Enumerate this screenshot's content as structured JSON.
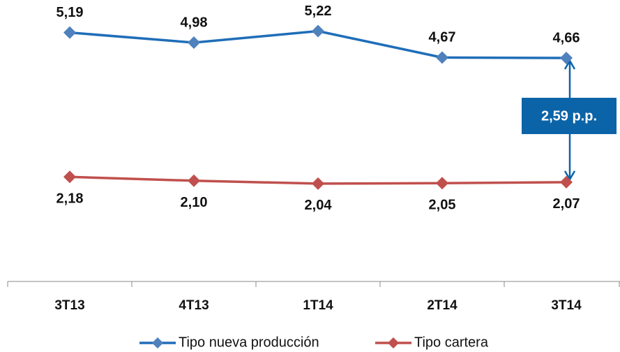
{
  "chart_data": {
    "type": "line",
    "categories": [
      "3T13",
      "4T13",
      "1T14",
      "2T14",
      "3T14"
    ],
    "series": [
      {
        "name": "Tipo nueva producción",
        "color": "#1f6eb8",
        "marker_color": "#4f81bd",
        "values": [
          5.19,
          4.98,
          5.22,
          4.67,
          4.66
        ],
        "value_labels": [
          "5,19",
          "4,98",
          "5,22",
          "4,67",
          "4,66"
        ]
      },
      {
        "name": "Tipo cartera",
        "color": "#c0504d",
        "marker_color": "#c0504d",
        "values": [
          2.18,
          2.1,
          2.04,
          2.05,
          2.07
        ],
        "value_labels": [
          "2,18",
          "2,10",
          "2,04",
          "2,05",
          "2,07"
        ]
      }
    ],
    "ylim": [
      0,
      6
    ],
    "annotation": "2,59 p.p.",
    "annotation_color": "#0b64a8",
    "legend": "bottom"
  }
}
